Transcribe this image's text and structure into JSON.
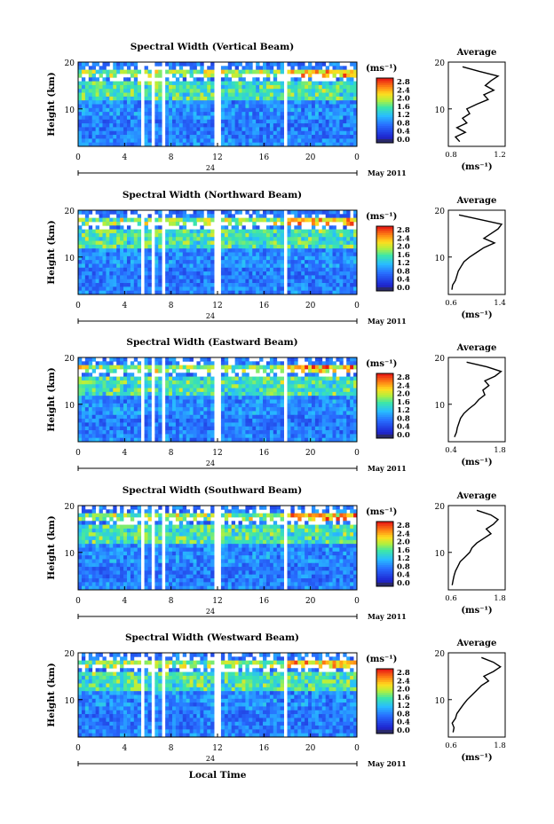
{
  "figure": {
    "x_axis_label": "Local Time",
    "date_label": "May 2011",
    "x_tick_labels": [
      "0",
      "4",
      "8",
      "12",
      "16",
      "20",
      "0"
    ],
    "day_marker": "24",
    "y_axis_label": "Height (km)",
    "y_tick_labels": [
      "10",
      "20"
    ],
    "colorbar_unit": "(ms⁻¹)",
    "colorbar_ticks": [
      "0.0",
      "0.4",
      "0.8",
      "1.2",
      "1.6",
      "2.0",
      "2.4",
      "2.8"
    ],
    "avg_title": "Average",
    "avg_unit": "(ms⁻¹)"
  },
  "colors": {
    "low": "#1a1aa0",
    "mid": "#2f7fff",
    "high": "#ff2020",
    "profile_line": "#000000"
  },
  "chart_data": [
    {
      "type": "heatmap",
      "title": "Spectral Width (Vertical Beam)",
      "xlim": [
        0,
        24
      ],
      "ylim": [
        2,
        20
      ],
      "clim": [
        0.0,
        3.0
      ],
      "data_gaps_hours": [
        [
          5.5,
          5.7
        ],
        [
          6.3,
          6.5
        ],
        [
          7.2,
          7.4
        ],
        [
          11.8,
          12.2
        ],
        [
          17.8,
          18.1
        ]
      ],
      "avg_profile": {
        "xlim": [
          0.8,
          1.2
        ],
        "xticks": [
          "0.8",
          "1.2"
        ],
        "height": [
          3,
          4,
          5,
          6,
          7,
          8,
          9,
          10,
          11,
          12,
          13,
          14,
          15,
          16,
          17,
          18,
          19
        ],
        "value": [
          0.88,
          0.85,
          0.92,
          0.86,
          0.93,
          0.9,
          0.95,
          0.93,
          1.0,
          1.08,
          1.05,
          1.12,
          1.06,
          1.1,
          1.15,
          1.02,
          0.9
        ]
      }
    },
    {
      "type": "heatmap",
      "title": "Spectral Width (Northward Beam)",
      "xlim": [
        0,
        24
      ],
      "ylim": [
        2,
        20
      ],
      "clim": [
        0.0,
        3.0
      ],
      "data_gaps_hours": [
        [
          5.5,
          5.7
        ],
        [
          6.3,
          6.5
        ],
        [
          7.2,
          7.4
        ],
        [
          11.8,
          12.2
        ],
        [
          17.8,
          18.1
        ]
      ],
      "avg_profile": {
        "xlim": [
          0.6,
          1.4
        ],
        "xticks": [
          "0.6",
          "1.4"
        ],
        "height": [
          3,
          4,
          5,
          6,
          7,
          8,
          9,
          10,
          11,
          12,
          13,
          14,
          15,
          16,
          17,
          18,
          19
        ],
        "value": [
          0.65,
          0.66,
          0.7,
          0.72,
          0.74,
          0.78,
          0.82,
          0.9,
          1.0,
          1.1,
          1.25,
          1.1,
          1.2,
          1.3,
          1.35,
          1.05,
          0.75
        ]
      }
    },
    {
      "type": "heatmap",
      "title": "Spectral Width (Eastward Beam)",
      "xlim": [
        0,
        24
      ],
      "ylim": [
        2,
        20
      ],
      "clim": [
        0.0,
        3.0
      ],
      "data_gaps_hours": [
        [
          5.5,
          5.7
        ],
        [
          6.3,
          6.5
        ],
        [
          7.2,
          7.4
        ],
        [
          11.8,
          12.2
        ],
        [
          17.8,
          18.1
        ]
      ],
      "avg_profile": {
        "xlim": [
          0.4,
          1.8
        ],
        "xticks": [
          "0.4",
          "1.8"
        ],
        "height": [
          3,
          4,
          5,
          6,
          7,
          8,
          9,
          10,
          11,
          12,
          13,
          14,
          15,
          16,
          17,
          18,
          19
        ],
        "value": [
          0.55,
          0.6,
          0.62,
          0.66,
          0.7,
          0.78,
          0.9,
          1.05,
          1.15,
          1.3,
          1.25,
          1.4,
          1.3,
          1.55,
          1.7,
          1.35,
          0.85
        ]
      }
    },
    {
      "type": "heatmap",
      "title": "Spectral Width (Southward Beam)",
      "xlim": [
        0,
        24
      ],
      "ylim": [
        2,
        20
      ],
      "clim": [
        0.0,
        3.0
      ],
      "data_gaps_hours": [
        [
          5.5,
          5.7
        ],
        [
          6.3,
          6.5
        ],
        [
          7.2,
          7.4
        ],
        [
          11.8,
          12.2
        ],
        [
          17.8,
          18.1
        ]
      ],
      "avg_profile": {
        "xlim": [
          0.6,
          1.8
        ],
        "xticks": [
          "0.6",
          "1.8"
        ],
        "height": [
          3,
          4,
          5,
          6,
          7,
          8,
          9,
          10,
          11,
          12,
          13,
          14,
          15,
          16,
          17,
          18,
          19
        ],
        "value": [
          0.68,
          0.7,
          0.72,
          0.75,
          0.8,
          0.85,
          0.95,
          1.05,
          1.1,
          1.2,
          1.35,
          1.5,
          1.4,
          1.55,
          1.65,
          1.5,
          1.2
        ]
      }
    },
    {
      "type": "heatmap",
      "title": "Spectral Width (Westward Beam)",
      "xlim": [
        0,
        24
      ],
      "ylim": [
        2,
        20
      ],
      "clim": [
        0.0,
        3.0
      ],
      "data_gaps_hours": [
        [
          5.5,
          5.7
        ],
        [
          6.3,
          6.5
        ],
        [
          7.2,
          7.4
        ],
        [
          11.8,
          12.2
        ],
        [
          17.8,
          18.1
        ]
      ],
      "avg_profile": {
        "xlim": [
          0.6,
          1.8
        ],
        "xticks": [
          "0.6",
          "1.8"
        ],
        "height": [
          3,
          4,
          5,
          6,
          7,
          8,
          9,
          10,
          11,
          12,
          13,
          14,
          15,
          16,
          17,
          18,
          19
        ],
        "value": [
          0.7,
          0.72,
          0.68,
          0.75,
          0.78,
          0.85,
          0.92,
          1.0,
          1.1,
          1.2,
          1.3,
          1.45,
          1.35,
          1.55,
          1.7,
          1.55,
          1.3
        ]
      }
    }
  ]
}
